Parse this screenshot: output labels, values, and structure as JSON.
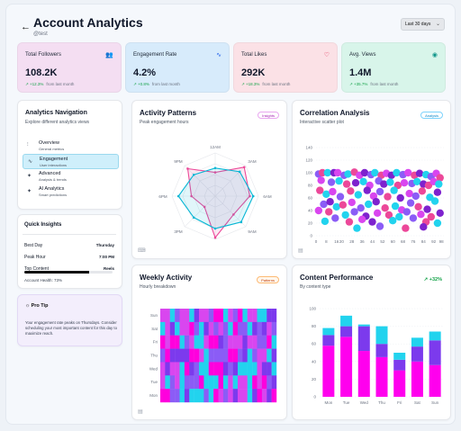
{
  "header": {
    "back_icon": "arrow-left-icon",
    "title": "Account Analytics",
    "handle": "@test",
    "date_range": "Last 30 days"
  },
  "stats": [
    {
      "label": "Total Followers",
      "value": "108.2K",
      "change": "+12.3%",
      "period": "from last month",
      "icon": "users-icon",
      "bg": "#f4def2",
      "icon_color": "#7c3aed"
    },
    {
      "label": "Engagement Rate",
      "value": "4.2%",
      "change": "+0.8%",
      "period": "from last month",
      "icon": "activity-icon",
      "bg": "#d7ebfb",
      "icon_color": "#2563eb"
    },
    {
      "label": "Total Likes",
      "value": "292K",
      "change": "+18.3%",
      "period": "from last month",
      "icon": "heart-icon",
      "bg": "#fbe1e6",
      "icon_color": "#e11d48"
    },
    {
      "label": "Avg. Views",
      "value": "1.4M",
      "change": "+35.7%",
      "period": "from last month",
      "icon": "eye-icon",
      "bg": "#d8f5ea",
      "icon_color": "#0d9488"
    }
  ],
  "nav": {
    "title": "Analytics Navigation",
    "subtitle": "Explore different analytics views",
    "items": [
      {
        "label": "Overview",
        "desc": "General metrics",
        "icon": "bar-chart-icon",
        "active": false
      },
      {
        "label": "Engagement",
        "desc": "User interactions",
        "icon": "activity-icon",
        "active": true
      },
      {
        "label": "Advanced",
        "desc": "Analysis & trends",
        "icon": "sparkle-icon",
        "active": false
      },
      {
        "label": "AI Analytics",
        "desc": "Smart predictions",
        "icon": "sparkle-icon",
        "active": false
      }
    ]
  },
  "insights": {
    "title": "Quick Insights",
    "rows": [
      {
        "label": "Best Day",
        "value": "Thursday"
      },
      {
        "label": "Peak Hour",
        "value": "7:00 PM"
      },
      {
        "label": "Top Content",
        "value": "Reels"
      }
    ],
    "health_label": "Account Health: 73%",
    "health_value": 0.73
  },
  "tip": {
    "title": "Pro Tip",
    "icon": "bulb-icon",
    "text": "Your engagement rate peaks on Thursdays. Consider scheduling your most important content for this day to maximize reach."
  },
  "activity": {
    "title": "Activity Patterns",
    "subtitle": "Peak engagement hours",
    "badge": "Insights",
    "chart_data": {
      "type": "radar",
      "axes": [
        "12AM",
        "3AM",
        "6AM",
        "9AM",
        "12PM",
        "3PM",
        "6PM",
        "9PM"
      ],
      "visible_tick_labels": [
        "12AM",
        "3AM",
        "6AM",
        "9AM",
        "3PM",
        "6PM",
        "9PM"
      ],
      "rmax": 100,
      "series": [
        {
          "color": "#ec4899",
          "values": [
            55,
            95,
            80,
            60,
            96,
            35,
            55,
            90
          ]
        },
        {
          "color": "#06b6d4",
          "values": [
            65,
            80,
            88,
            85,
            75,
            70,
            85,
            70
          ]
        }
      ]
    }
  },
  "correlation": {
    "title": "Correlation Analysis",
    "subtitle": "Interactive scatter plot",
    "badge": "Analysis",
    "chart_data": {
      "type": "scatter",
      "xlim": [
        0,
        100
      ],
      "ylim": [
        0,
        140
      ],
      "xticks": [
        0,
        8,
        16,
        20,
        28,
        36,
        44,
        52,
        60,
        68,
        76,
        84,
        92,
        98
      ],
      "yticks": [
        0,
        20,
        40,
        60,
        80,
        100,
        120,
        140
      ],
      "palette": [
        "#8b5cf6",
        "#ec4899",
        "#22d3ee",
        "#7e22ce",
        "#d946ef"
      ],
      "points": [
        [
          2,
          98,
          0
        ],
        [
          5,
          100,
          1
        ],
        [
          9,
          100,
          2
        ],
        [
          14,
          100,
          3
        ],
        [
          17,
          100,
          4
        ],
        [
          22,
          96,
          0
        ],
        [
          25,
          98,
          2
        ],
        [
          30,
          101,
          1
        ],
        [
          34,
          96,
          4
        ],
        [
          38,
          100,
          3
        ],
        [
          43,
          97,
          0
        ],
        [
          46,
          100,
          2
        ],
        [
          51,
          96,
          1
        ],
        [
          55,
          99,
          4
        ],
        [
          59,
          96,
          3
        ],
        [
          63,
          100,
          2
        ],
        [
          68,
          97,
          0
        ],
        [
          72,
          100,
          4
        ],
        [
          77,
          96,
          1
        ],
        [
          81,
          99,
          3
        ],
        [
          86,
          97,
          2
        ],
        [
          90,
          94,
          0
        ],
        [
          94,
          99,
          4
        ],
        [
          97,
          92,
          1
        ],
        [
          4,
          88,
          4
        ],
        [
          12,
          85,
          0
        ],
        [
          18,
          87,
          2
        ],
        [
          24,
          82,
          1
        ],
        [
          31,
          84,
          3
        ],
        [
          37,
          86,
          2
        ],
        [
          42,
          80,
          4
        ],
        [
          49,
          87,
          0
        ],
        [
          53,
          82,
          3
        ],
        [
          58,
          85,
          2
        ],
        [
          64,
          80,
          1
        ],
        [
          69,
          84,
          4
        ],
        [
          75,
          83,
          0
        ],
        [
          79,
          86,
          2
        ],
        [
          84,
          82,
          3
        ],
        [
          88,
          80,
          1
        ],
        [
          92,
          86,
          4
        ],
        [
          96,
          82,
          2
        ],
        [
          3,
          72,
          1
        ],
        [
          8,
          66,
          2
        ],
        [
          13,
          70,
          4
        ],
        [
          19,
          62,
          0
        ],
        [
          27,
          71,
          1
        ],
        [
          33,
          65,
          2
        ],
        [
          40,
          72,
          3
        ],
        [
          45,
          63,
          4
        ],
        [
          50,
          70,
          0
        ],
        [
          56,
          62,
          1
        ],
        [
          61,
          72,
          2
        ],
        [
          66,
          60,
          3
        ],
        [
          73,
          67,
          4
        ],
        [
          78,
          63,
          0
        ],
        [
          83,
          71,
          1
        ],
        [
          89,
          61,
          2
        ],
        [
          95,
          69,
          3
        ],
        [
          6,
          50,
          0
        ],
        [
          11,
          54,
          3
        ],
        [
          16,
          46,
          2
        ],
        [
          21,
          49,
          1
        ],
        [
          28,
          53,
          4
        ],
        [
          35,
          44,
          0
        ],
        [
          41,
          50,
          2
        ],
        [
          47,
          54,
          3
        ],
        [
          54,
          44,
          1
        ],
        [
          62,
          47,
          2
        ],
        [
          67,
          41,
          4
        ],
        [
          74,
          52,
          0
        ],
        [
          80,
          46,
          1
        ],
        [
          87,
          42,
          3
        ],
        [
          93,
          55,
          2
        ],
        [
          2,
          40,
          4
        ],
        [
          10,
          38,
          1
        ],
        [
          23,
          33,
          2
        ],
        [
          30,
          38,
          0
        ],
        [
          39,
          31,
          3
        ],
        [
          48,
          36,
          4
        ],
        [
          57,
          33,
          1
        ],
        [
          65,
          30,
          2
        ],
        [
          71,
          38,
          0
        ],
        [
          82,
          34,
          4
        ],
        [
          90,
          30,
          1
        ],
        [
          7,
          23,
          2
        ],
        [
          15,
          28,
          0
        ],
        [
          26,
          22,
          1
        ],
        [
          36,
          26,
          4
        ],
        [
          44,
          22,
          3
        ],
        [
          60,
          24,
          2
        ],
        [
          76,
          28,
          0
        ],
        [
          86,
          22,
          1
        ],
        [
          97,
          36,
          3
        ],
        [
          32,
          12,
          2
        ],
        [
          50,
          15,
          0
        ],
        [
          70,
          12,
          1
        ],
        [
          84,
          14,
          3
        ],
        [
          95,
          20,
          2
        ]
      ]
    }
  },
  "weekly": {
    "title": "Weekly Activity",
    "subtitle": "Hourly breakdown",
    "badge": "Patterns",
    "chart_data": {
      "type": "heatmap",
      "rows": [
        "Sun",
        "Sat",
        "Fri",
        "Thu",
        "Wed",
        "Tue",
        "Mon"
      ],
      "columns": 24,
      "palette": [
        "#22d3ee",
        "#8b5cf6",
        "#d946ef",
        "#ff00dd",
        "#7c3aed"
      ],
      "seed": 7
    }
  },
  "content": {
    "title": "Content Performance",
    "subtitle": "By content type",
    "growth": "+32%",
    "chart_data": {
      "type": "bar",
      "stacked": true,
      "categories": [
        "Mon",
        "Tue",
        "Wed",
        "Thu",
        "Fri",
        "Sat",
        "Sun"
      ],
      "ylim": [
        0,
        100
      ],
      "yticks": [
        0,
        20,
        40,
        60,
        80,
        100
      ],
      "series": [
        {
          "color": "#ff00ee",
          "values": [
            58,
            68,
            52,
            45,
            30,
            40,
            36
          ]
        },
        {
          "color": "#7c3aed",
          "values": [
            12,
            12,
            28,
            15,
            12,
            17,
            28
          ]
        },
        {
          "color": "#22d3ee",
          "values": [
            8,
            12,
            2,
            20,
            8,
            10,
            10
          ]
        }
      ]
    }
  }
}
